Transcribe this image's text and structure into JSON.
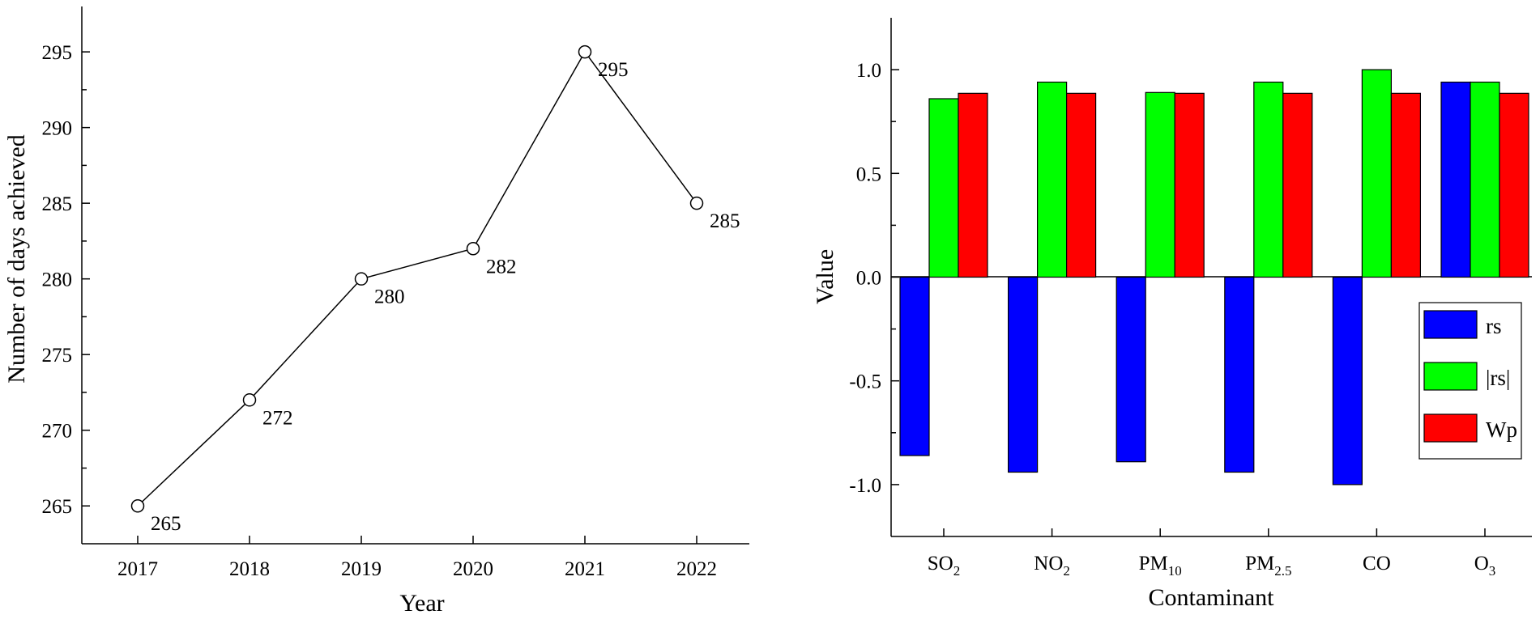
{
  "chart_data": [
    {
      "type": "line",
      "title": "",
      "xlabel": "Year",
      "ylabel": "Number of days achieved",
      "x": [
        "2017",
        "2018",
        "2019",
        "2020",
        "2021",
        "2022"
      ],
      "series": [
        {
          "values": [
            265,
            272,
            280,
            282,
            295,
            285
          ],
          "data_labels": [
            "265",
            "272",
            "280",
            "282",
            "295",
            "285"
          ]
        }
      ],
      "ylim": [
        262.5,
        298
      ],
      "yticks": [
        "265",
        "270",
        "275",
        "280",
        "285",
        "290",
        "295"
      ],
      "marker": "open-circle",
      "grid": false,
      "color": "#000000"
    },
    {
      "type": "bar",
      "title": "",
      "xlabel": "Contaminant",
      "ylabel": "Value",
      "categories": [
        {
          "base": "SO",
          "sub": "2"
        },
        {
          "base": "NO",
          "sub": "2"
        },
        {
          "base": "PM",
          "sub": "10"
        },
        {
          "base": "PM",
          "sub": "2.5"
        },
        {
          "base": "CO",
          "sub": ""
        },
        {
          "base": "O",
          "sub": "3"
        }
      ],
      "series": [
        {
          "name": "rs",
          "color": "#0000ff",
          "values": [
            -0.86,
            -0.94,
            -0.89,
            -0.94,
            -1.0,
            0.94
          ]
        },
        {
          "name": "|rs|",
          "color": "#00ff00",
          "values": [
            0.86,
            0.94,
            0.89,
            0.94,
            1.0,
            0.94
          ]
        },
        {
          "name": "Wp",
          "color": "#ff0000",
          "values": [
            0.886,
            0.886,
            0.886,
            0.886,
            0.886,
            0.886
          ]
        }
      ],
      "ylim": [
        -1.25,
        1.25
      ],
      "yticks": [
        "-1.0",
        "-0.5",
        "0.0",
        "0.5",
        "1.0"
      ],
      "legend": "right",
      "grid": false
    }
  ]
}
